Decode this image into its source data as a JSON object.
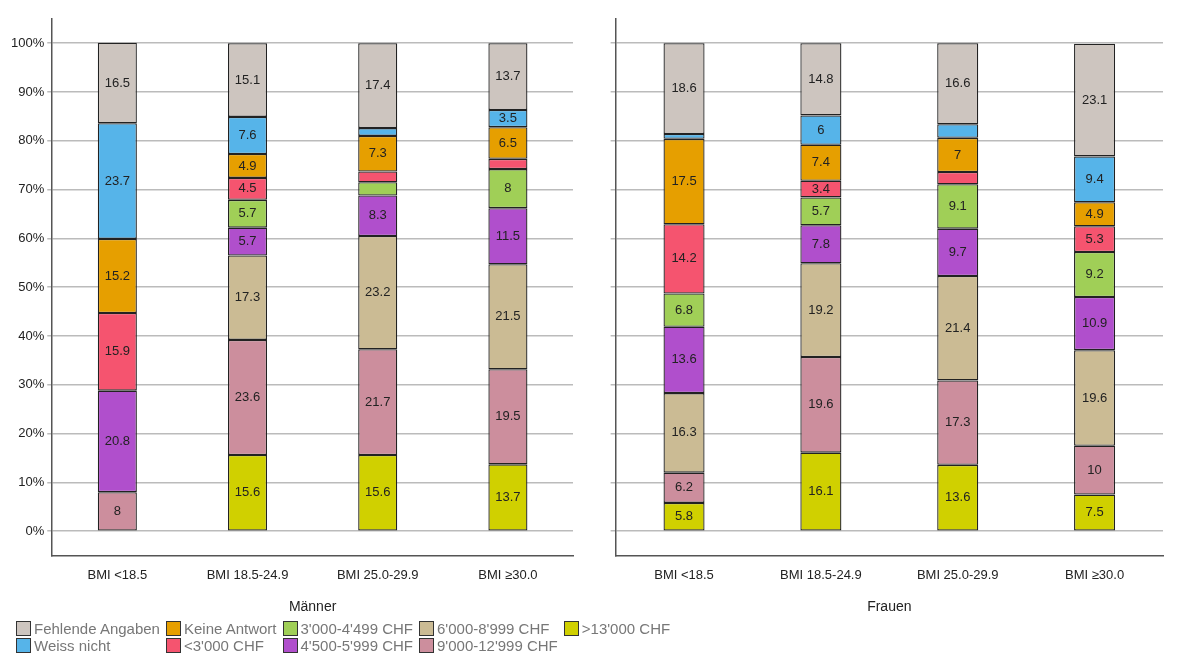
{
  "chart_data": [
    {
      "type": "bar",
      "stacked": true,
      "xlabel": "Männer",
      "categories": [
        "BMI <18.5",
        "BMI 18.5-24.9",
        "BMI 25.0-29.9",
        "BMI ≥30.0"
      ],
      "ylim": [
        -5,
        105
      ],
      "yticks": [
        {
          "value": 0,
          "label": "0%"
        },
        {
          "value": 10,
          "label": "10%"
        },
        {
          "value": 20,
          "label": "20%"
        },
        {
          "value": 30,
          "label": "30%"
        },
        {
          "value": 40,
          "label": "40%"
        },
        {
          "value": 50,
          "label": "50%"
        },
        {
          "value": 60,
          "label": "60%"
        },
        {
          "value": 70,
          "label": "70%"
        },
        {
          "value": 80,
          "label": "80%"
        },
        {
          "value": 90,
          "label": "90%"
        },
        {
          "value": 100,
          "label": "100%"
        }
      ],
      "grid": "y",
      "legend": "bottom",
      "series": [
        {
          "name": ">13'000 CHF",
          "color": "#d0d000",
          "values": [
            null,
            15.6,
            15.6,
            13.7
          ],
          "value_labels": [
            null,
            "15.6",
            "15.6",
            "13.7"
          ]
        },
        {
          "name": "9'000-12'999 CHF",
          "color": "#cc8e9d",
          "values": [
            8,
            23.6,
            21.7,
            19.5
          ],
          "value_labels": [
            "8",
            "23.6",
            "21.7",
            "19.5"
          ]
        },
        {
          "name": "6'000-8'999 CHF",
          "color": "#cbbb94",
          "values": [
            null,
            17.3,
            23.2,
            21.5
          ],
          "value_labels": [
            null,
            "17.3",
            "23.2",
            "21.5"
          ]
        },
        {
          "name": "4'500-5'999 CHF",
          "color": "#b04fcc",
          "values": [
            20.8,
            5.7,
            8.3,
            11.5
          ],
          "value_labels": [
            "20.8",
            "5.7",
            "8.3",
            "11.5"
          ]
        },
        {
          "name": "3'000-4'499 CHF",
          "color": "#a0cf57",
          "values": [
            null,
            5.7,
            2.7,
            8
          ],
          "value_labels": [
            null,
            "5.7",
            null,
            "8"
          ]
        },
        {
          "name": "<3'000 CHF",
          "color": "#f5546f",
          "values": [
            15.9,
            4.5,
            2.2,
            2.1
          ],
          "value_labels": [
            "15.9",
            "4.5",
            null,
            null
          ]
        },
        {
          "name": "Keine Antwort",
          "color": "#e69f00",
          "values": [
            15.2,
            4.9,
            7.3,
            6.5
          ],
          "value_labels": [
            "15.2",
            "4.9",
            "7.3",
            "6.5"
          ]
        },
        {
          "name": "Weiss nicht",
          "color": "#56b4e9",
          "values": [
            23.7,
            7.6,
            1.6,
            3.5
          ],
          "value_labels": [
            "23.7",
            "7.6",
            null,
            "3.5"
          ]
        },
        {
          "name": "Fehlende Angaben",
          "color": "#cdc5bf",
          "values": [
            16.5,
            15.1,
            17.4,
            13.7
          ],
          "value_labels": [
            "16.5",
            "15.1",
            "17.4",
            "13.7"
          ]
        }
      ]
    },
    {
      "type": "bar",
      "stacked": true,
      "xlabel": "Frauen",
      "categories": [
        "BMI <18.5",
        "BMI 18.5-24.9",
        "BMI 25.0-29.9",
        "BMI ≥30.0"
      ],
      "ylim": [
        -5,
        105
      ],
      "yticks": [
        {
          "value": 0,
          "label": null
        },
        {
          "value": 10,
          "label": null
        },
        {
          "value": 20,
          "label": null
        },
        {
          "value": 30,
          "label": null
        },
        {
          "value": 40,
          "label": null
        },
        {
          "value": 50,
          "label": null
        },
        {
          "value": 60,
          "label": null
        },
        {
          "value": 70,
          "label": null
        },
        {
          "value": 80,
          "label": null
        },
        {
          "value": 90,
          "label": null
        },
        {
          "value": 100,
          "label": null
        }
      ],
      "grid": "y",
      "tick_labels": "x",
      "series": [
        {
          "color": "#d0d000",
          "values": [
            5.8,
            16.1,
            13.6,
            7.5
          ],
          "value_labels": [
            "5.8",
            "16.1",
            "13.6",
            "7.5"
          ]
        },
        {
          "color": "#cc8e9d",
          "values": [
            6.2,
            19.6,
            17.3,
            10
          ],
          "value_labels": [
            "6.2",
            "19.6",
            "17.3",
            "10"
          ]
        },
        {
          "color": "#cbbb94",
          "values": [
            16.3,
            19.2,
            21.4,
            19.6
          ],
          "value_labels": [
            "16.3",
            "19.2",
            "21.4",
            "19.6"
          ]
        },
        {
          "color": "#b04fcc",
          "values": [
            13.6,
            7.8,
            9.7,
            10.9
          ],
          "value_labels": [
            "13.6",
            "7.8",
            "9.7",
            "10.9"
          ]
        },
        {
          "color": "#a0cf57",
          "values": [
            6.8,
            5.7,
            9.1,
            9.2
          ],
          "value_labels": [
            "6.8",
            "5.7",
            "9.1",
            "9.2"
          ]
        },
        {
          "color": "#f5546f",
          "values": [
            14.2,
            3.4,
            2.5,
            5.3
          ],
          "value_labels": [
            "14.2",
            "3.4",
            null,
            "5.3"
          ]
        },
        {
          "color": "#e69f00",
          "values": [
            17.5,
            7.4,
            7,
            4.9
          ],
          "value_labels": [
            "17.5",
            "7.4",
            "7",
            "4.9"
          ]
        },
        {
          "color": "#56b4e9",
          "values": [
            1,
            6,
            2.8,
            9.4
          ],
          "value_labels": [
            null,
            "6",
            null,
            "9.4"
          ]
        },
        {
          "color": "#cdc5bf",
          "values": [
            18.6,
            14.8,
            16.6,
            23.1
          ],
          "value_labels": [
            "18.6",
            "14.8",
            "16.6",
            "23.1"
          ]
        }
      ]
    }
  ]
}
